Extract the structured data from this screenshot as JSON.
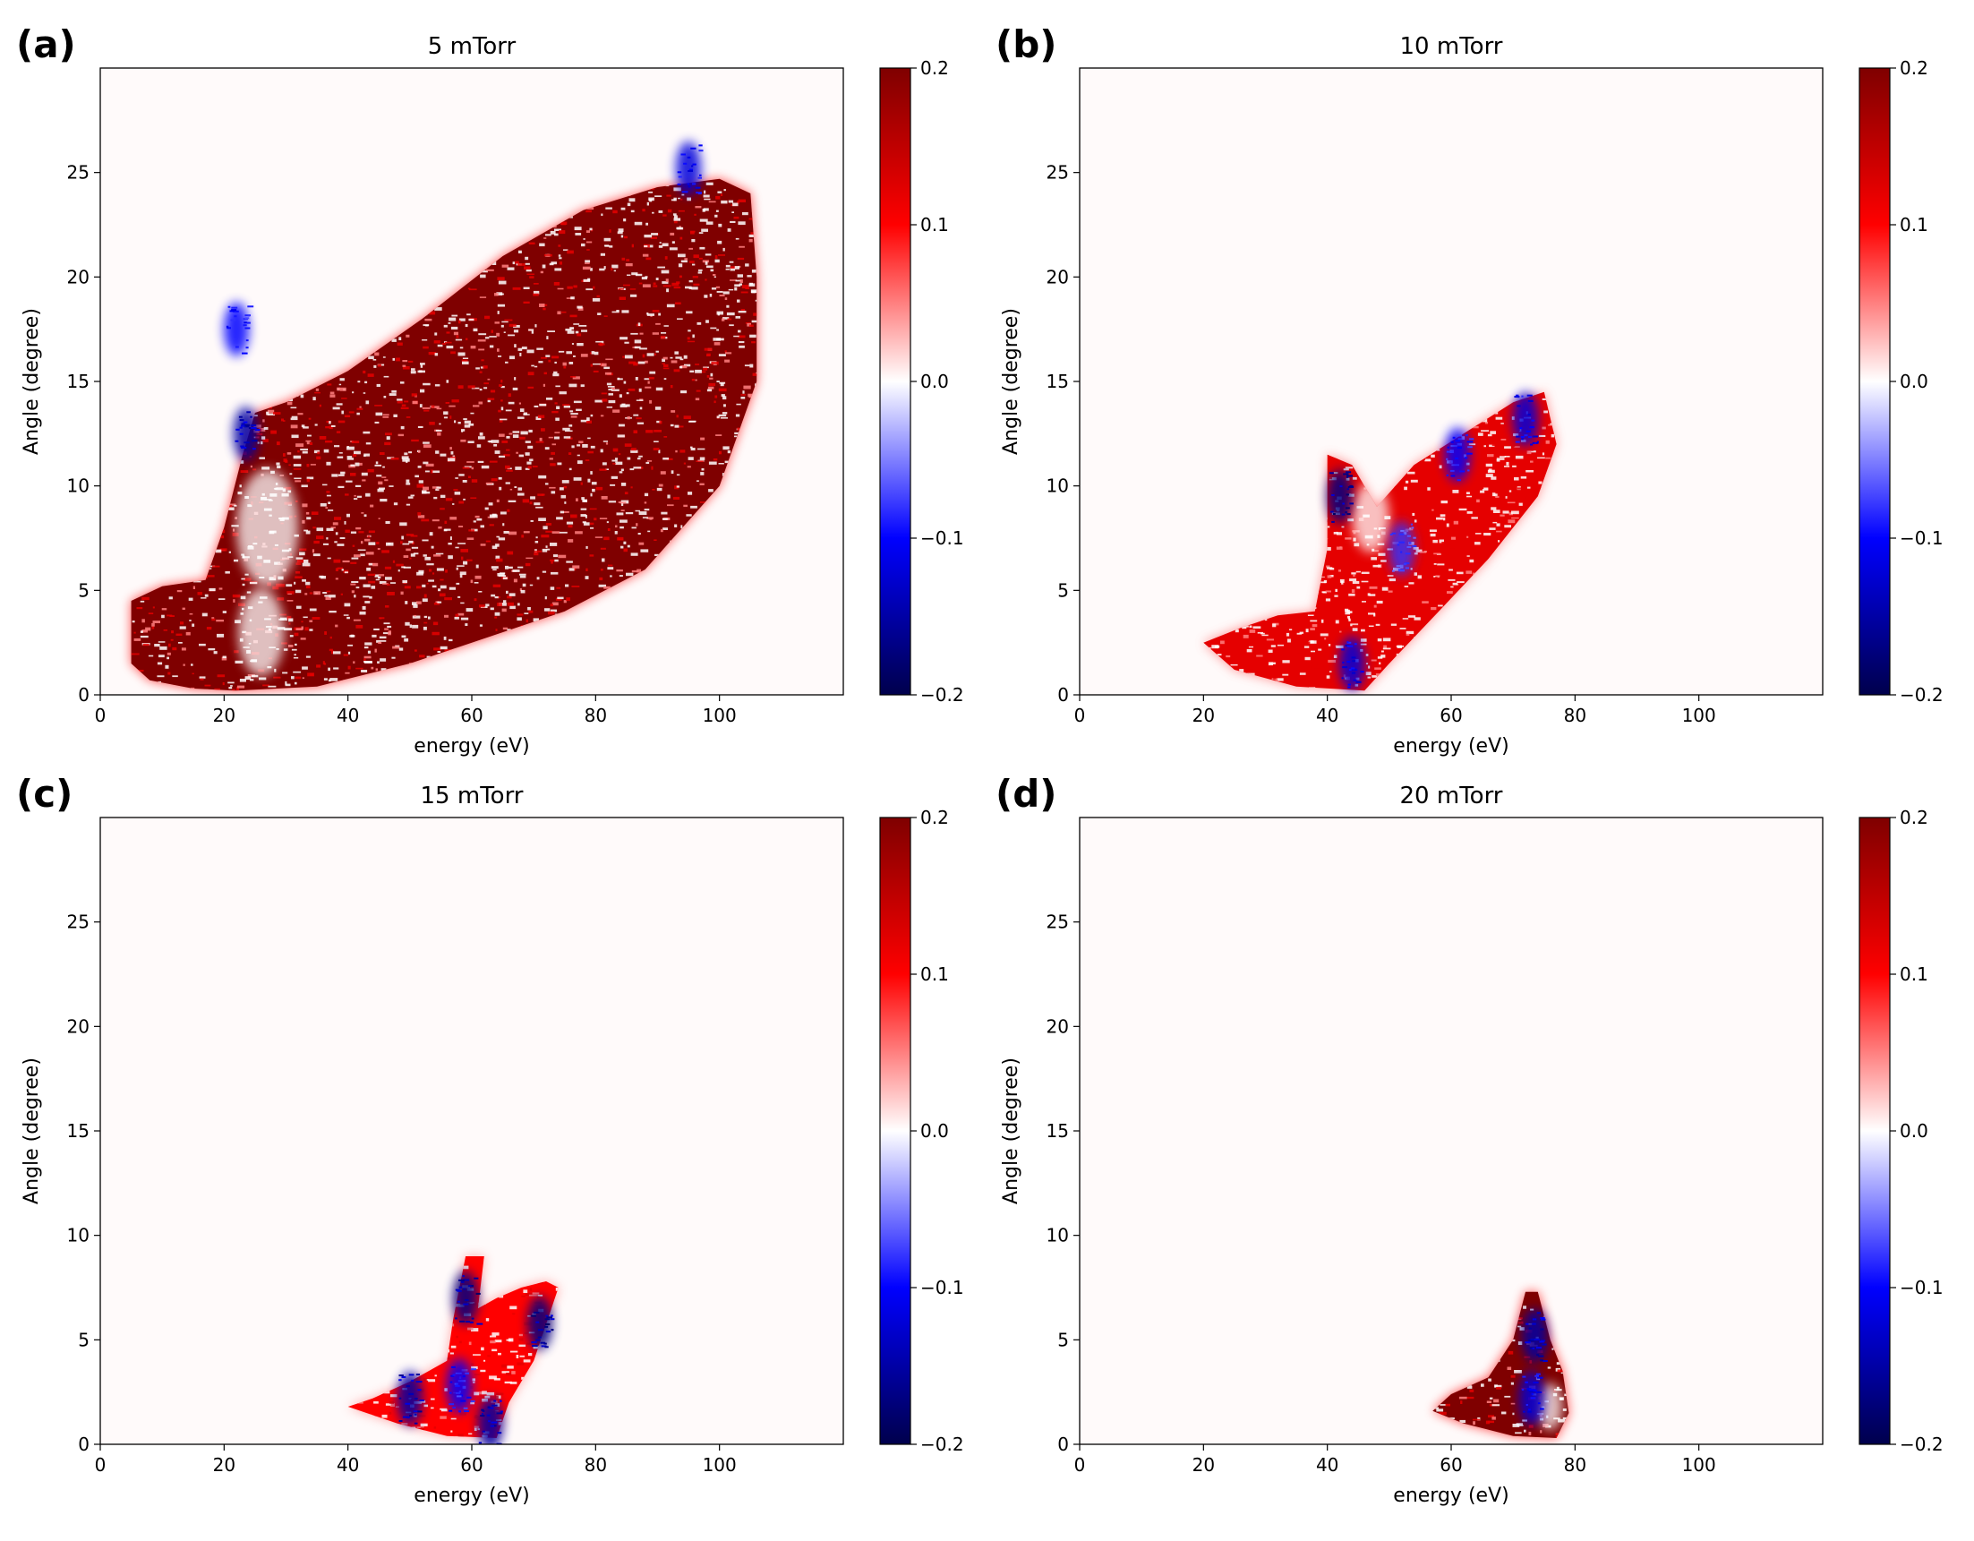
{
  "figure": {
    "colormap": "seismic",
    "color_stops": [
      "#00004c",
      "#0000ff",
      "#ffffff",
      "#ff0000",
      "#7f0000"
    ],
    "background_color": "#fffafa",
    "colorbar_ticks": [
      "0.2",
      "0.1",
      "0.0",
      "−0.1",
      "−0.2"
    ],
    "x_ticks": [
      "0",
      "20",
      "40",
      "60",
      "80",
      "100"
    ],
    "y_ticks": [
      "0",
      "5",
      "10",
      "15",
      "20",
      "25"
    ]
  },
  "chart_data": [
    {
      "type": "heatmap",
      "panel_label": "(a)",
      "title": "5 mTorr",
      "xlabel": "energy (eV)",
      "ylabel": "Angle (degree)",
      "xlim": [
        0,
        120
      ],
      "ylim": [
        0,
        30
      ],
      "clim": [
        -0.2,
        0.2
      ],
      "region": {
        "outline": [
          [
            5,
            1.5
          ],
          [
            8,
            0.7
          ],
          [
            15,
            0.3
          ],
          [
            22,
            0.2
          ],
          [
            35,
            0.4
          ],
          [
            50,
            1.5
          ],
          [
            60,
            2.5
          ],
          [
            75,
            4
          ],
          [
            88,
            6
          ],
          [
            100,
            10
          ],
          [
            106,
            15
          ],
          [
            106,
            20
          ],
          [
            105,
            24
          ],
          [
            100,
            24.7
          ],
          [
            90,
            24.3
          ],
          [
            78,
            23.2
          ],
          [
            65,
            21
          ],
          [
            52,
            18
          ],
          [
            40,
            15.5
          ],
          [
            30,
            14
          ],
          [
            25,
            13.5
          ],
          [
            23,
            11.5
          ],
          [
            20,
            8
          ],
          [
            17,
            5.5
          ],
          [
            10,
            5.2
          ],
          [
            5,
            4.5
          ]
        ],
        "dominant_value": 0.2,
        "blue_patches": [
          {
            "energy": 23.5,
            "angle": 12.5,
            "value": -0.15
          },
          {
            "energy": 95,
            "angle": 25.2,
            "value": -0.12
          },
          {
            "energy": 22,
            "angle": 17.5,
            "value": -0.1
          }
        ],
        "gap_patches": [
          {
            "energy": 27,
            "angle": 8,
            "size": 2
          },
          {
            "energy": 26,
            "angle": 3,
            "size": 1.5
          }
        ]
      }
    },
    {
      "type": "heatmap",
      "panel_label": "(b)",
      "title": "10 mTorr",
      "xlabel": "energy (eV)",
      "ylabel": "Angle (degree)",
      "xlim": [
        0,
        120
      ],
      "ylim": [
        0,
        30
      ],
      "clim": [
        -0.2,
        0.2
      ],
      "region": {
        "outline": [
          [
            20,
            2.5
          ],
          [
            25,
            1.2
          ],
          [
            35,
            0.4
          ],
          [
            46,
            0.2
          ],
          [
            50,
            1.5
          ],
          [
            58,
            4
          ],
          [
            66,
            6.5
          ],
          [
            74,
            9.5
          ],
          [
            77,
            12
          ],
          [
            75,
            14.5
          ],
          [
            70,
            14
          ],
          [
            62,
            12.5
          ],
          [
            54,
            11
          ],
          [
            48,
            9
          ],
          [
            44,
            11
          ],
          [
            40,
            11.5
          ],
          [
            40,
            7
          ],
          [
            38,
            4
          ],
          [
            32,
            3.8
          ],
          [
            26,
            3.2
          ]
        ],
        "dominant_value": 0.12,
        "blue_patches": [
          {
            "energy": 42,
            "angle": 9.5,
            "value": -0.17
          },
          {
            "energy": 72,
            "angle": 13.2,
            "value": -0.12
          },
          {
            "energy": 61,
            "angle": 11.5,
            "value": -0.1
          },
          {
            "energy": 52,
            "angle": 7,
            "value": -0.08
          },
          {
            "energy": 44,
            "angle": 1.5,
            "value": -0.12
          }
        ],
        "gap_patches": [
          {
            "energy": 47,
            "angle": 8.5,
            "size": 1.2
          }
        ]
      }
    },
    {
      "type": "heatmap",
      "panel_label": "(c)",
      "title": "15 mTorr",
      "xlabel": "energy (eV)",
      "ylabel": "Angle (degree)",
      "xlim": [
        0,
        120
      ],
      "ylim": [
        0,
        30
      ],
      "clim": [
        -0.2,
        0.2
      ],
      "region": {
        "outline": [
          [
            40,
            1.8
          ],
          [
            48,
            1
          ],
          [
            56,
            0.4
          ],
          [
            64,
            0.3
          ],
          [
            66,
            2
          ],
          [
            70,
            4
          ],
          [
            74,
            7.5
          ],
          [
            72,
            7.8
          ],
          [
            68,
            7.5
          ],
          [
            64,
            7
          ],
          [
            61,
            6.5
          ],
          [
            62,
            9
          ],
          [
            59,
            9
          ],
          [
            57,
            6
          ],
          [
            56,
            4
          ],
          [
            50,
            3
          ],
          [
            44,
            2.2
          ]
        ],
        "dominant_value": 0.1,
        "blue_patches": [
          {
            "energy": 59,
            "angle": 7,
            "value": -0.17
          },
          {
            "energy": 71,
            "angle": 5.8,
            "value": -0.17
          },
          {
            "energy": 50,
            "angle": 2.2,
            "value": -0.15
          },
          {
            "energy": 63,
            "angle": 1,
            "value": -0.15
          },
          {
            "energy": 58,
            "angle": 2.8,
            "value": -0.1
          }
        ],
        "gap_patches": []
      }
    },
    {
      "type": "heatmap",
      "panel_label": "(d)",
      "title": "20 mTorr",
      "xlabel": "energy (eV)",
      "ylabel": "Angle (degree)",
      "xlim": [
        0,
        120
      ],
      "ylim": [
        0,
        30
      ],
      "clim": [
        -0.2,
        0.2
      ],
      "region": {
        "outline": [
          [
            57,
            1.6
          ],
          [
            62,
            1
          ],
          [
            70,
            0.4
          ],
          [
            77,
            0.3
          ],
          [
            79,
            1.5
          ],
          [
            78,
            3.5
          ],
          [
            76,
            5
          ],
          [
            74,
            7.3
          ],
          [
            72,
            7.3
          ],
          [
            70,
            5
          ],
          [
            66,
            3.2
          ],
          [
            60,
            2.4
          ]
        ],
        "dominant_value": 0.2,
        "blue_patches": [
          {
            "energy": 73.5,
            "angle": 5.2,
            "value": -0.15
          },
          {
            "energy": 73,
            "angle": 2.2,
            "value": -0.12
          }
        ],
        "gap_patches": [
          {
            "energy": 76,
            "angle": 1.8,
            "size": 0.8
          }
        ]
      }
    }
  ]
}
